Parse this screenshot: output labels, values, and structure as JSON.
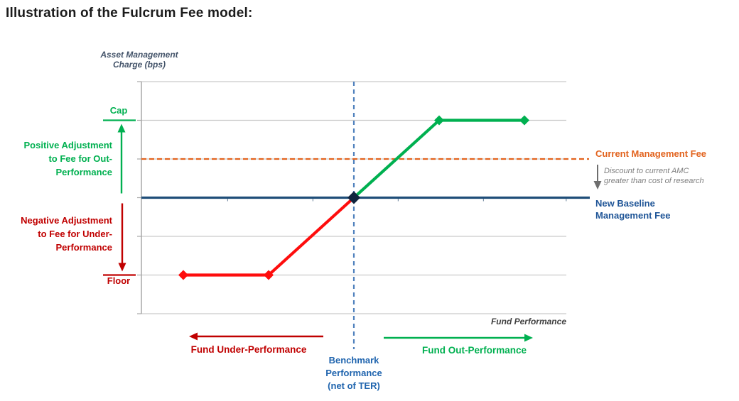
{
  "page_title": "Illustration of the Fulcrum Fee model:",
  "axis": {
    "y_label": [
      "Asset Management",
      "Charge (bps)"
    ],
    "x_label": "Fund Performance"
  },
  "annotations": {
    "cap": "Cap",
    "floor": "Floor",
    "positive_adjustment": [
      "Positive Adjustment",
      "to Fee for Out-",
      "Performance"
    ],
    "negative_adjustment": [
      "Negative Adjustment",
      "to Fee for Under-",
      "Performance"
    ],
    "current_management_fee": "Current Management Fee",
    "discount_note": [
      "Discount  to current AMC",
      "greater than cost of research"
    ],
    "new_baseline_fee": [
      "New Baseline",
      "Management Fee"
    ],
    "benchmark": [
      "Benchmark",
      "Performance",
      "(net of TER)"
    ],
    "fund_under_performance": "Fund Under-Performance",
    "fund_out_performance": "Fund Out-Performance"
  },
  "colors": {
    "green": "#00B050",
    "bright_red": "#FE0D0D",
    "dark_red": "#C00000",
    "orange": "#E2631E",
    "navy_line": "#1F4E79",
    "benchmark_blue": "#4F81BD",
    "benchmark_text_blue": "#1F64AE",
    "baseline_text_blue": "#1F5597",
    "slate": "#44546A",
    "grid_gray": "#C9C9C9",
    "axis_gray": "#A8A8A8",
    "tick_gray": "#7F93A8",
    "note_gray": "#6E6E6E",
    "center_marker": "#10243E"
  },
  "chart_data": {
    "type": "line",
    "title": "Illustration of the Fulcrum Fee model",
    "xlabel": "Fund Performance",
    "ylabel": "Asset Management Charge (bps)",
    "x_axis": {
      "range": [
        -2.49,
        2.49
      ],
      "tick_positions": [
        -1.48,
        -0.48,
        0.52,
        1.52,
        2.49
      ],
      "tick_labels": []
    },
    "y_axis": {
      "range": [
        -3,
        3
      ],
      "gridline_positions": [
        -3,
        -2,
        -1,
        0,
        1,
        2,
        3
      ],
      "tick_labels": []
    },
    "units_note": "schematic axes without numeric labels; values expressed relative to benchmark performance (x=0) and new baseline management fee (y=0); one y unit = one gridline",
    "series": [
      {
        "name": "Fee for Under-Performance",
        "color_key": "bright_red",
        "marker": "diamond",
        "points": [
          [
            -2,
            -2
          ],
          [
            -1,
            -2
          ],
          [
            0,
            0
          ]
        ]
      },
      {
        "name": "Fee for Out-Performance",
        "color_key": "green",
        "marker": "diamond",
        "points": [
          [
            0,
            0
          ],
          [
            1,
            2
          ],
          [
            2,
            2
          ]
        ]
      }
    ],
    "reference_lines": {
      "cap_level": 2,
      "floor_level": -2,
      "current_management_fee_level": 1,
      "new_baseline_fee_level": 0,
      "benchmark_x": 0
    },
    "fulcrum_point": [
      0,
      0
    ],
    "legend": "none",
    "grid": "horizontal gridlines only"
  }
}
